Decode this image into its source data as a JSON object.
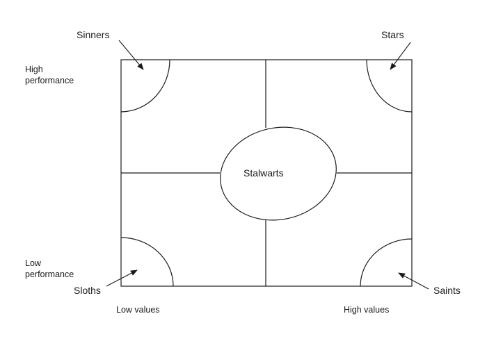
{
  "diagram": {
    "quadrants": {
      "top_left": "Sinners",
      "top_right": "Stars",
      "bottom_left": "Sloths",
      "bottom_right": "Saints"
    },
    "center": "Stalwarts",
    "y_axis": {
      "high_line1": "High",
      "high_line2": "performance",
      "low_line1": "Low",
      "low_line2": "performance"
    },
    "x_axis": {
      "low": "Low values",
      "high": "High values"
    },
    "colors": {
      "line": "#1a1a1a",
      "background": "#ffffff"
    }
  }
}
